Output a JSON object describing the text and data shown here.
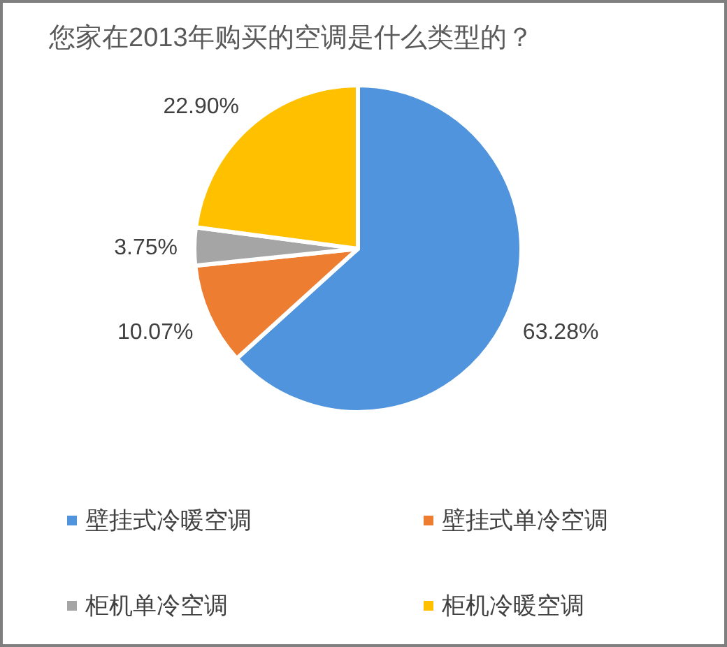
{
  "chart_data": {
    "type": "pie",
    "title": "您家在2013年购买的空调是什么类型的？",
    "categories": [
      "壁挂式冷暖空调",
      "壁挂式单冷空调",
      "柜机单冷空调",
      "柜机冷暖空调"
    ],
    "values": [
      63.28,
      10.07,
      3.75,
      22.9
    ],
    "colors": [
      "#4f94dc",
      "#ed7d31",
      "#a5a5a5",
      "#ffc000"
    ],
    "value_labels": [
      "63.28%",
      "10.07%",
      "3.75%",
      "22.90%"
    ],
    "legend": "bottom"
  }
}
